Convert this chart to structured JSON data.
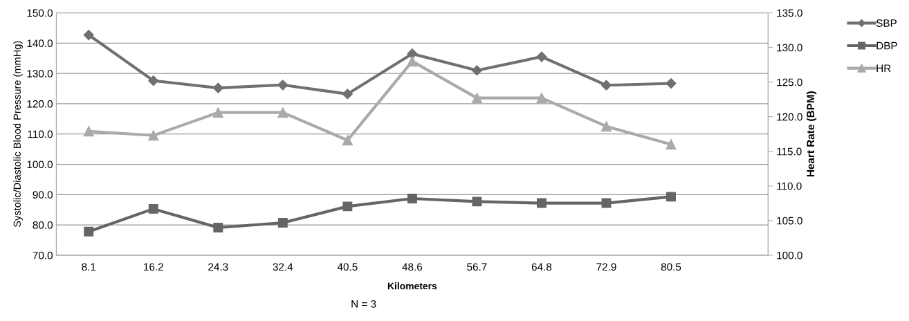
{
  "chart_data": {
    "type": "line",
    "xlabel": "Kilometers",
    "ylabel": "Systolic/Diastolic Blood Pressure (mmHg)",
    "y2label": "Heart Rate (BPM)",
    "categories": [
      "8.1",
      "16.2",
      "24.3",
      "32.4",
      "40.5",
      "48.6",
      "56.7",
      "64.8",
      "72.9",
      "80.5",
      null
    ],
    "series": [
      {
        "name": "SBP",
        "color": "#707070",
        "marker": "diamond",
        "values": [
          142.7,
          127.6,
          125.2,
          126.2,
          123.2,
          136.5,
          131.0,
          135.5,
          126.1,
          126.7,
          null
        ]
      },
      {
        "name": "DBP",
        "color": "#656565",
        "marker": "square",
        "values": [
          77.8,
          85.3,
          79.1,
          80.7,
          86.1,
          88.7,
          87.7,
          87.2,
          87.2,
          89.3,
          null
        ]
      },
      {
        "name": "HR",
        "color": "#aaaaaa",
        "marker": "triangle",
        "axis": "y2",
        "values": [
          117.9,
          117.3,
          120.6,
          120.6,
          116.6,
          128.0,
          122.7,
          122.7,
          118.6,
          116.0,
          null
        ]
      }
    ],
    "ylim": [
      70,
      150
    ],
    "yticks": [
      {
        "value": 70,
        "label": "70.0"
      },
      {
        "value": 80,
        "label": "80.0"
      },
      {
        "value": 90,
        "label": "90.0"
      },
      {
        "value": 100,
        "label": "100.0"
      },
      {
        "value": 110,
        "label": "110.0"
      },
      {
        "value": 120,
        "label": "120.0"
      },
      {
        "value": 130,
        "label": "130.0"
      },
      {
        "value": 140,
        "label": "140.0"
      },
      {
        "value": 150,
        "label": "150.0"
      }
    ],
    "y2lim": [
      100,
      135
    ],
    "y2ticks": [
      {
        "value": 100,
        "label": "100.0"
      },
      {
        "value": 105,
        "label": "105.0"
      },
      {
        "value": 110,
        "label": "110.0"
      },
      {
        "value": 115,
        "label": "115.0"
      },
      {
        "value": 120,
        "label": "120.0"
      },
      {
        "value": 125,
        "label": "125.0"
      },
      {
        "value": 130,
        "label": "130.0"
      },
      {
        "value": 135,
        "label": "135.0"
      }
    ],
    "grid": "y",
    "legend": "top right",
    "line_style": "solid",
    "annotations": [
      "N = 3"
    ]
  }
}
